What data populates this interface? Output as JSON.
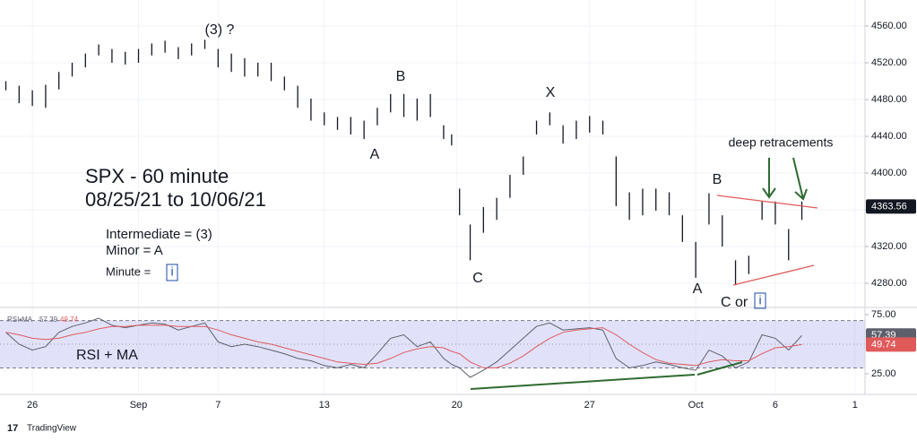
{
  "chart_data": {
    "type": "ohlc",
    "title": "SPX - 60 minute",
    "subtitle": "08/25/21 to 10/06/21",
    "notes": [
      "Intermediate = (3)",
      "Minor = A"
    ],
    "minute_label": "Minute =",
    "minute_value": "i",
    "annotations": [
      "(3) ?",
      "A",
      "B",
      "C",
      "X",
      "A",
      "B",
      "C or",
      "i",
      "deep retracements"
    ],
    "color": "#131722",
    "x": [
      0,
      0.5,
      1,
      1.5,
      2,
      2.5,
      3,
      3.5,
      4,
      4.5,
      5,
      5.5,
      6,
      6.5,
      7,
      7.5,
      8,
      8.5,
      9,
      9.5,
      10,
      10.5,
      11,
      11.5,
      12,
      12.5,
      13,
      13.5,
      14,
      14.5,
      15,
      15.5,
      16,
      16.5,
      16.8,
      17.1,
      17.5,
      18,
      18.5,
      19,
      19.5,
      20,
      20.5,
      21,
      21.5,
      22,
      22.5,
      23,
      23.5,
      24,
      24.5,
      25,
      25.5,
      26,
      26.5,
      27,
      27.5,
      28,
      28.5,
      29,
      29.5,
      30
    ],
    "high": [
      4500,
      4495,
      4490,
      4496,
      4510,
      4520,
      4530,
      4540,
      4535,
      4532,
      4535,
      4541,
      4544,
      4537,
      4541,
      4545,
      4535,
      4530,
      4525,
      4520,
      4520,
      4505,
      4495,
      4481,
      4466,
      4461,
      4461,
      4457,
      4471,
      4486,
      4486,
      4481,
      4486,
      4452,
      4442,
      4383,
      4344,
      4363,
      4373,
      4398,
      4418,
      4457,
      4466,
      4452,
      4457,
      4462,
      4457,
      4418,
      4379,
      4383,
      4383,
      4379,
      4354,
      4325,
      4378,
      4354,
      4305,
      4310,
      4369,
      4369,
      4339,
      4369
    ],
    "low": [
      4490,
      4476,
      4473,
      4471,
      4491,
      4505,
      4515,
      4528,
      4520,
      4518,
      4520,
      4528,
      4531,
      4524,
      4528,
      4535,
      4515,
      4510,
      4505,
      4505,
      4500,
      4490,
      4471,
      4457,
      4452,
      4447,
      4442,
      4437,
      4452,
      4466,
      4461,
      4457,
      4461,
      4437,
      4430,
      4354,
      4305,
      4335,
      4349,
      4373,
      4398,
      4442,
      4452,
      4432,
      4437,
      4444,
      4442,
      4364,
      4349,
      4354,
      4359,
      4354,
      4325,
      4286,
      4344,
      4320,
      4278,
      4290,
      4349,
      4344,
      4305,
      4349
    ],
    "last_price": 4363.56,
    "xlim": [
      -0.22,
      32.38
    ],
    "xticks": [
      {
        "value": 1,
        "label": "26"
      },
      {
        "value": 5,
        "label": "Sep"
      },
      {
        "value": 8,
        "label": "7"
      },
      {
        "value": 12,
        "label": "13"
      },
      {
        "value": 17,
        "label": "20"
      },
      {
        "value": 22,
        "label": "27"
      },
      {
        "value": 26,
        "label": "Oct"
      },
      {
        "value": 29,
        "label": "6"
      },
      {
        "value": 32,
        "label": "1"
      }
    ],
    "ylim": [
      4253.7,
      4588.3
    ],
    "yticks": [
      {
        "value": 4280,
        "label": "4280.00"
      },
      {
        "value": 4320,
        "label": "4320.00"
      },
      {
        "value": 4360,
        "label": "4360.00"
      },
      {
        "value": 4400,
        "label": "4400.00"
      },
      {
        "value": 4440,
        "label": "4440.00"
      },
      {
        "value": 4480,
        "label": "4480.00"
      },
      {
        "value": 4520,
        "label": "4520.00"
      },
      {
        "value": 4560,
        "label": "4560.00"
      }
    ],
    "grid": true,
    "rsi": {
      "title": "RSI + MA",
      "legend": "RSI•MA",
      "ylim": [
        7.6,
        81.1
      ],
      "yticks": [
        {
          "value": 75,
          "label": "75.00"
        },
        {
          "value": 25,
          "label": "25.00"
        }
      ],
      "band": [
        30,
        70
      ],
      "midline": 50,
      "series": [
        {
          "name": "RSI",
          "color": "#5d606b",
          "last_value": 57.39,
          "values": [
            60,
            50,
            45,
            48,
            60,
            65,
            68,
            72,
            66,
            64,
            66,
            68,
            67,
            62,
            65,
            68,
            52,
            48,
            50,
            48,
            45,
            42,
            38,
            36,
            32,
            30,
            33,
            30,
            42,
            55,
            58,
            48,
            52,
            38,
            33,
            30,
            22,
            28,
            35,
            45,
            55,
            65,
            68,
            62,
            63,
            64,
            62,
            38,
            30,
            32,
            35,
            33,
            30,
            28,
            45,
            40,
            30,
            35,
            58,
            55,
            45,
            57.39
          ]
        },
        {
          "name": "MA",
          "color": "#e05a5a",
          "last_value": 49.74,
          "values": [
            60,
            58,
            55,
            54,
            55,
            58,
            60,
            63,
            65,
            65,
            66,
            66,
            66,
            65,
            65,
            65,
            62,
            58,
            55,
            52,
            50,
            47,
            44,
            41,
            38,
            35,
            34,
            33,
            34,
            38,
            43,
            46,
            48,
            47,
            44,
            42,
            35,
            30,
            30,
            34,
            40,
            48,
            55,
            60,
            62,
            63,
            64,
            58,
            50,
            43,
            37,
            34,
            33,
            32,
            35,
            37,
            36,
            36,
            42,
            47,
            48,
            49.74
          ]
        }
      ]
    },
    "brand": "TradingView"
  }
}
